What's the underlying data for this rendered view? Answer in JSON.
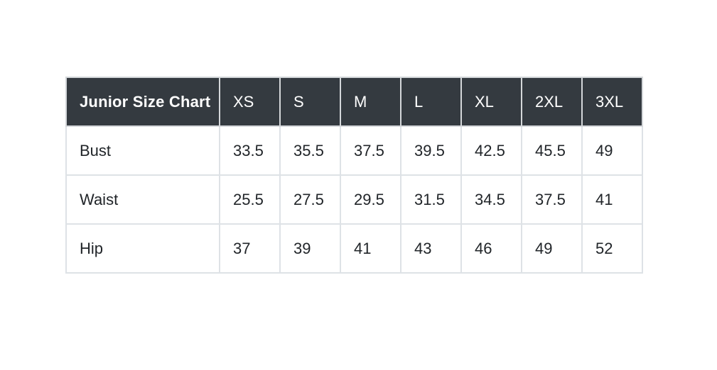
{
  "chart_data": {
    "type": "table",
    "title": "Junior Size Chart",
    "columns": [
      "XS",
      "S",
      "M",
      "L",
      "XL",
      "2XL",
      "3XL"
    ],
    "rows": [
      {
        "label": "Bust",
        "values": [
          "33.5",
          "35.5",
          "37.5",
          "39.5",
          "42.5",
          "45.5",
          "49"
        ]
      },
      {
        "label": "Waist",
        "values": [
          "25.5",
          "27.5",
          "29.5",
          "31.5",
          "34.5",
          "37.5",
          "41"
        ]
      },
      {
        "label": "Hip",
        "values": [
          "37",
          "39",
          "41",
          "43",
          "46",
          "49",
          "52"
        ]
      }
    ],
    "layout": {
      "header_position": "top",
      "grid": true
    }
  },
  "colors": {
    "header_bg": "#343a40",
    "header_text": "#ffffff",
    "body_text": "#212529",
    "border": "#dee2e6",
    "page_bg": "#ffffff"
  }
}
